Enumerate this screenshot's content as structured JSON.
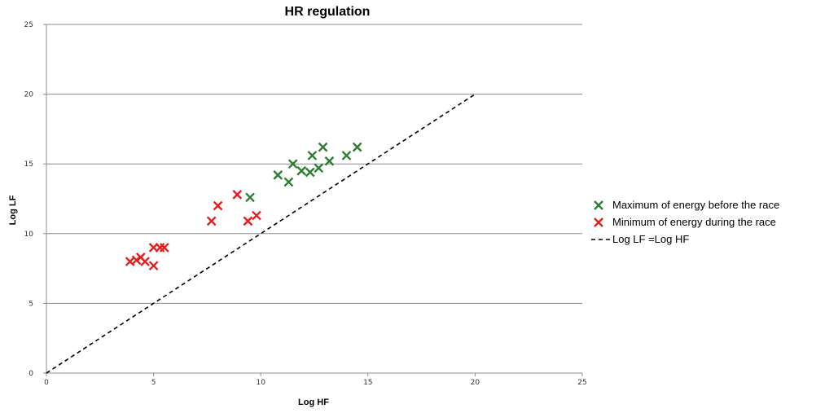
{
  "chart_data": {
    "type": "scatter",
    "title": "HR regulation",
    "xlabel": "Log HF",
    "ylabel": "Log LF",
    "xlim": [
      0,
      25
    ],
    "ylim": [
      0,
      25
    ],
    "x_ticks": [
      "0",
      "5",
      "10",
      "15",
      "20",
      "25"
    ],
    "y_ticks": [
      "0",
      "5",
      "10",
      "15",
      "20",
      "25"
    ],
    "grid": "horizontal",
    "legend_position": "right",
    "series": [
      {
        "name": "Maximum of energy before the race",
        "marker": "x",
        "color": "#2e7d32",
        "points": [
          [
            9.5,
            12.6
          ],
          [
            10.8,
            14.2
          ],
          [
            11.3,
            13.7
          ],
          [
            11.5,
            15.0
          ],
          [
            11.9,
            14.5
          ],
          [
            12.3,
            14.4
          ],
          [
            12.4,
            15.6
          ],
          [
            12.7,
            14.7
          ],
          [
            12.9,
            16.2
          ],
          [
            13.2,
            15.2
          ],
          [
            14.0,
            15.6
          ],
          [
            14.5,
            16.2
          ]
        ]
      },
      {
        "name": "Minimum of energy during the race",
        "marker": "x",
        "color": "#e81c1c",
        "points": [
          [
            3.9,
            8.0
          ],
          [
            4.2,
            8.1
          ],
          [
            4.4,
            8.3
          ],
          [
            4.6,
            8.0
          ],
          [
            5.0,
            7.7
          ],
          [
            5.0,
            9.0
          ],
          [
            5.3,
            9.0
          ],
          [
            5.5,
            9.0
          ],
          [
            7.7,
            10.9
          ],
          [
            8.0,
            12.0
          ],
          [
            8.9,
            12.8
          ],
          [
            9.4,
            10.9
          ],
          [
            9.8,
            11.3
          ]
        ]
      }
    ],
    "reference_line": {
      "name": "Log LF =Log HF",
      "style": "dashed",
      "color": "#000000",
      "from": [
        0,
        0
      ],
      "to": [
        20,
        20
      ]
    }
  }
}
